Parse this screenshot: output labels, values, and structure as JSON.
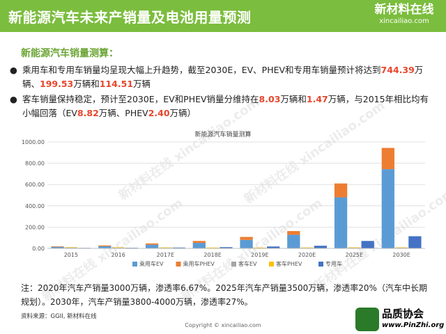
{
  "header": {
    "title": "新能源汽车未来产销量及电池用量预测"
  },
  "logo": {
    "name": "新材料在线",
    "url": "xincailiao.com"
  },
  "section_title": "新能源汽车销量测算：",
  "bullets": {
    "b1_part1": "乘用车和专用车销量均呈现大幅上升趋势，截至2030E，EV、PHEV和专用车销量预计将达到",
    "b1_v1": "744.39",
    "b1_part2": "万辆、",
    "b1_v2": "199.53",
    "b1_part3": "万辆和",
    "b1_v3": "114.51",
    "b1_part4": "万辆",
    "b2_part1": "客车销量保持稳定，预计至2030E，EV和PHEV销量分维持在",
    "b2_v1": "8.03",
    "b2_part2": "万辆和",
    "b2_v2": "1.47",
    "b2_part3": "万辆，与2015年相比均有小幅回落（EV",
    "b2_v3": "8.82",
    "b2_part4": "万辆、PHEV",
    "b2_v4": "2.40",
    "b2_part5": "万辆）"
  },
  "chart_data": {
    "type": "bar",
    "title": "新能源汽车销量测算",
    "categories": [
      "2015",
      "2016",
      "2017E",
      "2018E",
      "2019E",
      "2020E",
      "2025E",
      "2030E"
    ],
    "ylim": [
      0,
      1000
    ],
    "yticks": [
      "0.00",
      "200.00",
      "400.00",
      "600.00",
      "800.00",
      "1000.00"
    ],
    "grid": true,
    "legend_position": "bottom",
    "series": [
      {
        "name": "乘用车EV",
        "stack": "passenger",
        "color": "#5b9bd5",
        "values": [
          15,
          20,
          35,
          52,
          80,
          128,
          480,
          744.39
        ]
      },
      {
        "name": "乘用车PHEV",
        "stack": "passenger",
        "color": "#ed7d31",
        "values": [
          5,
          8,
          12,
          18,
          28,
          35,
          130,
          199.53
        ]
      },
      {
        "name": "客车EV",
        "stack": "bus",
        "color": "#a5a5a5",
        "values": [
          8.82,
          8,
          7,
          6,
          6,
          7,
          8,
          8.03
        ]
      },
      {
        "name": "客车PHEV",
        "stack": "bus",
        "color": "#ffc000",
        "values": [
          2.4,
          2,
          2,
          1.8,
          1.6,
          1.5,
          1.5,
          1.47
        ]
      },
      {
        "name": "专用车",
        "stack": "special",
        "color": "#4472c4",
        "values": [
          5,
          6,
          8,
          12,
          18,
          25,
          70,
          114.51
        ]
      }
    ]
  },
  "note": "注：2020年汽车产销量3000万辆，渗透率6.67%。2025年汽车产销量3500万辆，渗透率20%（汽车中长期规划）。2030年，汽车产销量3800-4000万辆，渗透率27%。",
  "source": "资料来源：GGII, 新材料在线",
  "copyright": "Copyright © xincailiao.com",
  "partner_logo": {
    "name": "品质协会",
    "url": "www.PinZhi.org"
  },
  "watermark": "新材料在线 xincailiao.com"
}
